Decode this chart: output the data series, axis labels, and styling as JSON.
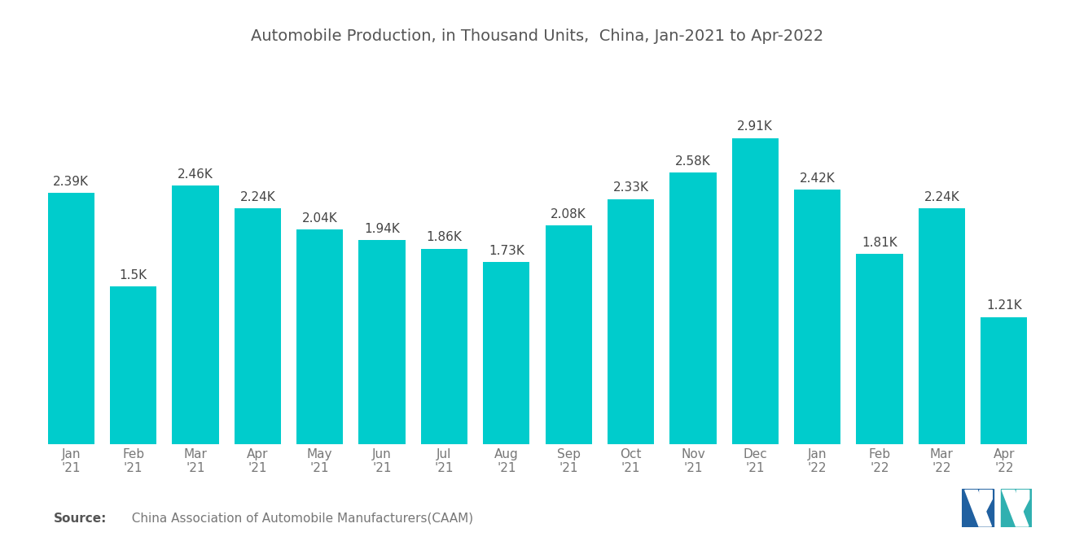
{
  "title": "Automobile Production, in Thousand Units,  China, Jan-2021 to Apr-2022",
  "categories": [
    "Jan\n'21",
    "Feb\n'21",
    "Mar\n'21",
    "Apr\n'21",
    "May\n'21",
    "Jun\n'21",
    "Jul\n'21",
    "Aug\n'21",
    "Sep\n'21",
    "Oct\n'21",
    "Nov\n'21",
    "Dec\n'21",
    "Jan\n'22",
    "Feb\n'22",
    "Mar\n'22",
    "Apr\n'22"
  ],
  "values": [
    2.39,
    1.5,
    2.46,
    2.24,
    2.04,
    1.94,
    1.86,
    1.73,
    2.08,
    2.33,
    2.58,
    2.91,
    2.42,
    1.81,
    2.24,
    1.21
  ],
  "labels": [
    "2.39K",
    "1.5K",
    "2.46K",
    "2.24K",
    "2.04K",
    "1.94K",
    "1.86K",
    "1.73K",
    "2.08K",
    "2.33K",
    "2.58K",
    "2.91K",
    "2.42K",
    "1.81K",
    "2.24K",
    "1.21K"
  ],
  "bar_color": "#00CCCC",
  "background_color": "#ffffff",
  "title_color": "#555555",
  "label_color": "#444444",
  "tick_color": "#777777",
  "source_bold": "Source:",
  "source_normal": "  China Association of Automobile Manufacturers(CAAM)",
  "title_fontsize": 14,
  "label_fontsize": 11,
  "tick_fontsize": 11,
  "source_fontsize": 11,
  "ylim": [
    0,
    3.6
  ],
  "bar_width": 0.75,
  "logo_left_color": "#2060a0",
  "logo_right_color": "#30b0b0"
}
